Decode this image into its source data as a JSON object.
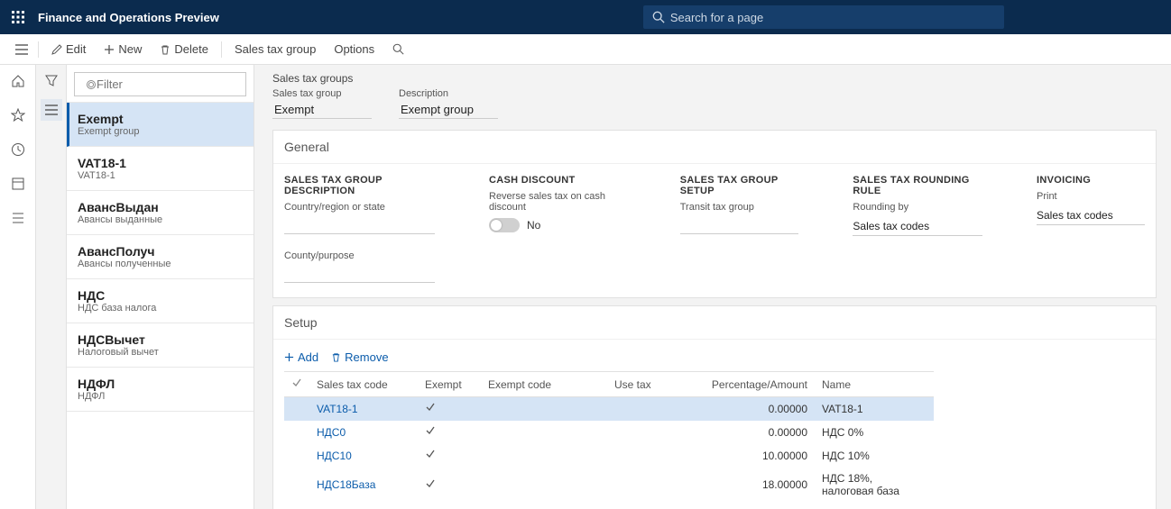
{
  "topbar": {
    "title": "Finance and Operations Preview",
    "search_placeholder": "Search for a page"
  },
  "actionbar": {
    "edit": "Edit",
    "new": "New",
    "delete": "Delete",
    "salesGroup": "Sales tax group",
    "options": "Options"
  },
  "filter": {
    "placeholder": "Filter"
  },
  "groups": [
    {
      "primary": "Exempt",
      "secondary": "Exempt group",
      "selected": true
    },
    {
      "primary": "VAT18-1",
      "secondary": "VAT18-1",
      "selected": false
    },
    {
      "primary": "АвансВыдан",
      "secondary": "Авансы выданные",
      "selected": false
    },
    {
      "primary": "АвансПолуч",
      "secondary": "Авансы полученные",
      "selected": false
    },
    {
      "primary": "НДС",
      "secondary": "НДС база налога",
      "selected": false
    },
    {
      "primary": "НДСВычет",
      "secondary": "Налоговый вычет",
      "selected": false
    },
    {
      "primary": "НДФЛ",
      "secondary": "НДФЛ",
      "selected": false
    }
  ],
  "breadcrumb": "Sales tax groups",
  "header": {
    "groupLabel": "Sales tax group",
    "groupValue": "Exempt",
    "descLabel": "Description",
    "descValue": "Exempt group"
  },
  "general": {
    "title": "General",
    "col1": {
      "hdr": "SALES TAX GROUP DESCRIPTION",
      "f1": "Country/region or state",
      "v1": "",
      "f2": "County/purpose",
      "v2": ""
    },
    "col2": {
      "hdr": "CASH DISCOUNT",
      "f1": "Reverse sales tax on cash discount",
      "toggle": "No"
    },
    "col3": {
      "hdr": "SALES TAX GROUP SETUP",
      "f1": "Transit tax group",
      "v1": ""
    },
    "col4": {
      "hdr": "SALES TAX ROUNDING RULE",
      "f1": "Rounding by",
      "v1": "Sales tax codes"
    },
    "col5": {
      "hdr": "INVOICING",
      "f1": "Print",
      "v1": "Sales tax codes"
    }
  },
  "setup": {
    "title": "Setup",
    "add": "Add",
    "remove": "Remove",
    "columns": {
      "code": "Sales tax code",
      "exempt": "Exempt",
      "exemptCode": "Exempt code",
      "useTax": "Use tax",
      "pct": "Percentage/Amount",
      "name": "Name"
    },
    "rows": [
      {
        "code": "VAT18-1",
        "exempt": true,
        "exemptCode": "",
        "useTax": "",
        "pct": "0.00000",
        "name": "VAT18-1",
        "selected": true
      },
      {
        "code": "НДС0",
        "exempt": true,
        "exemptCode": "",
        "useTax": "",
        "pct": "0.00000",
        "name": "НДС 0%",
        "selected": false
      },
      {
        "code": "НДС10",
        "exempt": true,
        "exemptCode": "",
        "useTax": "",
        "pct": "10.00000",
        "name": "НДС 10%",
        "selected": false
      },
      {
        "code": "НДС18База",
        "exempt": true,
        "exemptCode": "",
        "useTax": "",
        "pct": "18.00000",
        "name": "НДС 18%, налоговая база",
        "selected": false
      }
    ]
  },
  "colors": {
    "brand": "#0b2b4e",
    "accent": "#0b5cab",
    "selection": "#d5e4f5"
  }
}
